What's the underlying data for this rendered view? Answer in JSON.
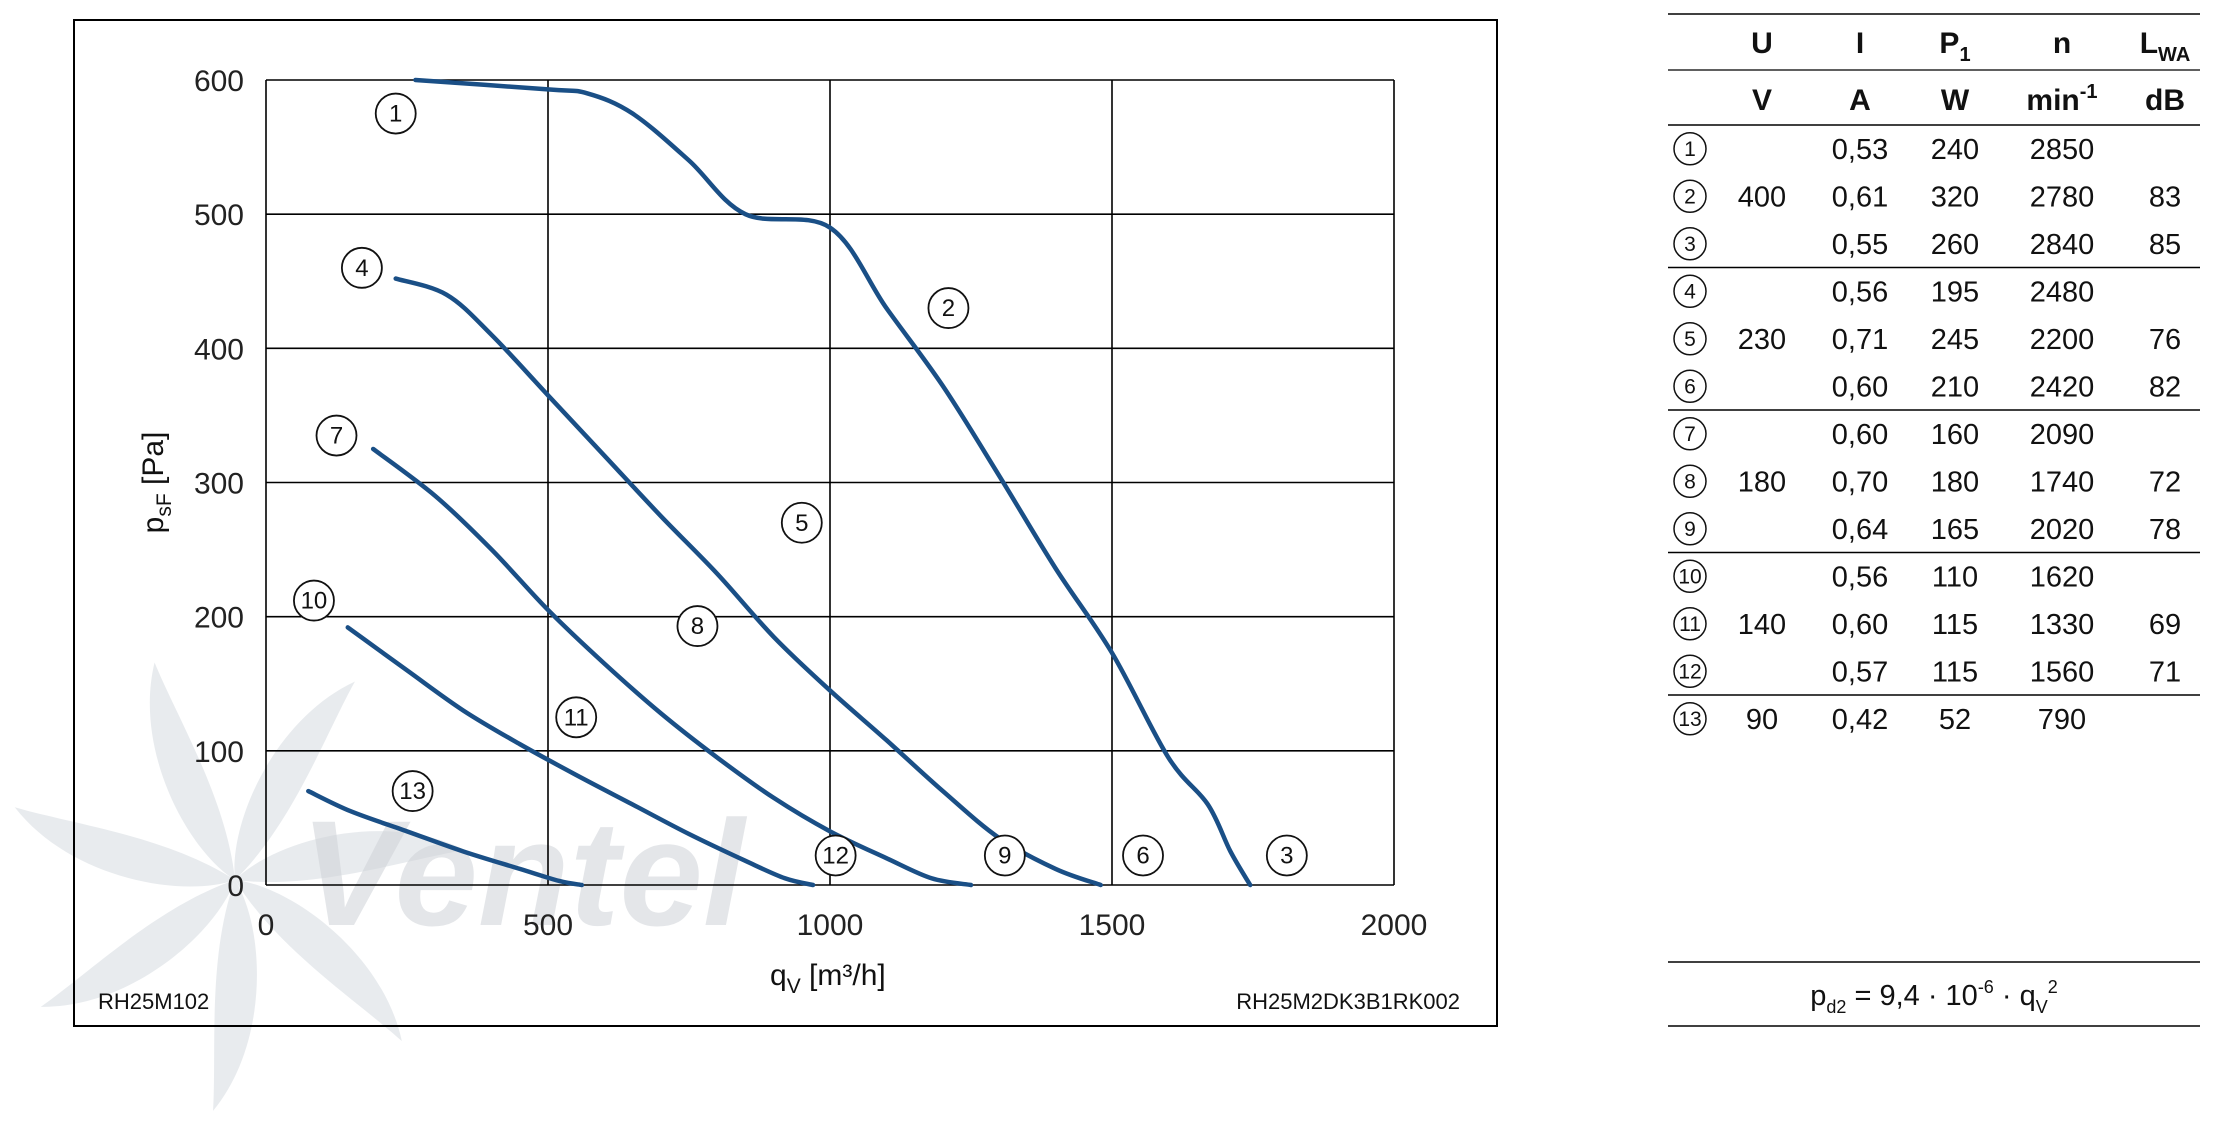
{
  "chart_data": {
    "type": "line",
    "xlabel": "q",
    "xlabel_sub": "V",
    "xlabel_unit": "[m³/h]",
    "ylabel": "p",
    "ylabel_sub": "sF",
    "ylabel_unit": "[Pa]",
    "xlim": [
      0,
      2000
    ],
    "ylim": [
      0,
      600
    ],
    "x_ticks": [
      0,
      500,
      1000,
      1500,
      2000
    ],
    "y_ticks": [
      0,
      100,
      200,
      300,
      400,
      500,
      600
    ],
    "grid": true,
    "watermark": "Ventel",
    "bottom_left_code": "RH25M102",
    "bottom_right_code": "RH25M2DK3B1RK002",
    "series": [
      {
        "label": "1–2–3",
        "color": "#1a4f86",
        "points": [
          [
            265,
            600
          ],
          [
            500,
            593
          ],
          [
            570,
            590
          ],
          [
            650,
            575
          ],
          [
            750,
            540
          ],
          [
            850,
            500
          ],
          [
            1000,
            490
          ],
          [
            1100,
            430
          ],
          [
            1200,
            372
          ],
          [
            1300,
            305
          ],
          [
            1400,
            236
          ],
          [
            1500,
            173
          ],
          [
            1600,
            95
          ],
          [
            1670,
            60
          ],
          [
            1710,
            25
          ],
          [
            1745,
            0
          ]
        ]
      },
      {
        "label": "4–5–6",
        "color": "#1a4f86",
        "points": [
          [
            230,
            452
          ],
          [
            320,
            440
          ],
          [
            400,
            410
          ],
          [
            500,
            365
          ],
          [
            600,
            320
          ],
          [
            700,
            275
          ],
          [
            800,
            232
          ],
          [
            900,
            185
          ],
          [
            1000,
            145
          ],
          [
            1100,
            108
          ],
          [
            1200,
            70
          ],
          [
            1300,
            35
          ],
          [
            1400,
            12
          ],
          [
            1480,
            0
          ]
        ]
      },
      {
        "label": "7–8–9",
        "color": "#1a4f86",
        "points": [
          [
            190,
            325
          ],
          [
            300,
            290
          ],
          [
            400,
            250
          ],
          [
            500,
            205
          ],
          [
            600,
            165
          ],
          [
            700,
            128
          ],
          [
            800,
            95
          ],
          [
            900,
            65
          ],
          [
            1000,
            40
          ],
          [
            1100,
            20
          ],
          [
            1180,
            5
          ],
          [
            1250,
            0
          ]
        ]
      },
      {
        "label": "10–11–12",
        "color": "#1a4f86",
        "points": [
          [
            145,
            192
          ],
          [
            250,
            160
          ],
          [
            350,
            130
          ],
          [
            450,
            105
          ],
          [
            550,
            82
          ],
          [
            650,
            60
          ],
          [
            750,
            38
          ],
          [
            850,
            18
          ],
          [
            920,
            5
          ],
          [
            970,
            0
          ]
        ]
      },
      {
        "label": "13",
        "color": "#1a4f86",
        "points": [
          [
            75,
            70
          ],
          [
            150,
            55
          ],
          [
            250,
            40
          ],
          [
            350,
            25
          ],
          [
            450,
            12
          ],
          [
            520,
            3
          ],
          [
            560,
            0
          ]
        ]
      }
    ],
    "curve_labels": [
      {
        "text": "1",
        "x": 230,
        "y": 575
      },
      {
        "text": "2",
        "x": 1210,
        "y": 430
      },
      {
        "text": "3",
        "x": 1810,
        "y": 22
      },
      {
        "text": "4",
        "x": 170,
        "y": 460
      },
      {
        "text": "5",
        "x": 950,
        "y": 270
      },
      {
        "text": "6",
        "x": 1555,
        "y": 22
      },
      {
        "text": "7",
        "x": 125,
        "y": 335
      },
      {
        "text": "8",
        "x": 765,
        "y": 193
      },
      {
        "text": "9",
        "x": 1310,
        "y": 22
      },
      {
        "text": "10",
        "x": 85,
        "y": 212
      },
      {
        "text": "11",
        "x": 550,
        "y": 125
      },
      {
        "text": "12",
        "x": 1010,
        "y": 22
      },
      {
        "text": "13",
        "x": 260,
        "y": 70
      }
    ]
  },
  "table": {
    "headers": [
      {
        "main": "U",
        "sub": "",
        "unit": "V"
      },
      {
        "main": "I",
        "sub": "",
        "unit": "A"
      },
      {
        "main": "P",
        "sub": "1",
        "unit": "W"
      },
      {
        "main": "n",
        "sub": "",
        "unit": "min-1"
      },
      {
        "main": "L",
        "sub": "WA",
        "unit": "dB"
      }
    ],
    "groups": [
      {
        "U": "400",
        "rows": [
          {
            "id": "1",
            "I": "0,53",
            "P": "240",
            "n": "2850",
            "L": ""
          },
          {
            "id": "2",
            "I": "0,61",
            "P": "320",
            "n": "2780",
            "L": "83"
          },
          {
            "id": "3",
            "I": "0,55",
            "P": "260",
            "n": "2840",
            "L": "85"
          }
        ]
      },
      {
        "U": "230",
        "rows": [
          {
            "id": "4",
            "I": "0,56",
            "P": "195",
            "n": "2480",
            "L": ""
          },
          {
            "id": "5",
            "I": "0,71",
            "P": "245",
            "n": "2200",
            "L": "76"
          },
          {
            "id": "6",
            "I": "0,60",
            "P": "210",
            "n": "2420",
            "L": "82"
          }
        ]
      },
      {
        "U": "180",
        "rows": [
          {
            "id": "7",
            "I": "0,60",
            "P": "160",
            "n": "2090",
            "L": ""
          },
          {
            "id": "8",
            "I": "0,70",
            "P": "180",
            "n": "1740",
            "L": "72"
          },
          {
            "id": "9",
            "I": "0,64",
            "P": "165",
            "n": "2020",
            "L": "78"
          }
        ]
      },
      {
        "U": "140",
        "rows": [
          {
            "id": "10",
            "I": "0,56",
            "P": "110",
            "n": "1620",
            "L": ""
          },
          {
            "id": "11",
            "I": "0,60",
            "P": "115",
            "n": "1330",
            "L": "69"
          },
          {
            "id": "12",
            "I": "0,57",
            "P": "115",
            "n": "1560",
            "L": "71"
          }
        ]
      },
      {
        "U": "90",
        "rows": [
          {
            "id": "13",
            "I": "0,42",
            "P": "52",
            "n": "790",
            "L": ""
          }
        ]
      }
    ]
  },
  "formula": {
    "lhs": "p",
    "lhs_sub": "d2",
    "mid": " = 9,4 · 10",
    "exp": "-6",
    "rhs": " · q",
    "rhs_sub": "V",
    "rhs_exp": "2"
  }
}
